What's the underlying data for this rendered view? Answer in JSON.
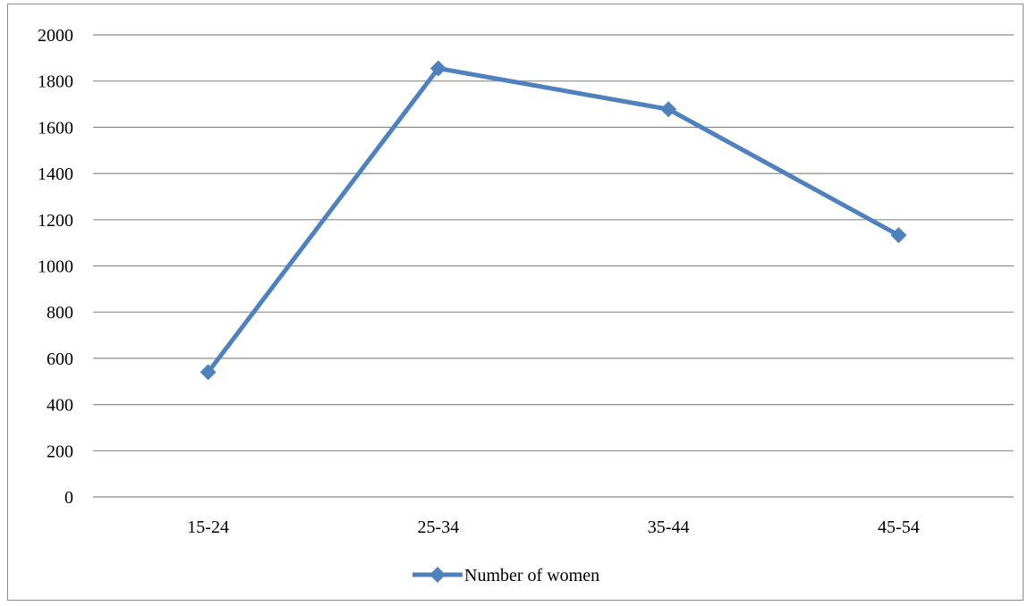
{
  "chart_data": {
    "type": "line",
    "categories": [
      "15-24",
      "25-34",
      "35-44",
      "45-54"
    ],
    "series": [
      {
        "name": "Number of women",
        "values": [
          540,
          1855,
          1678,
          1133
        ],
        "color": "#4F81BD",
        "marker": "diamond"
      }
    ],
    "ylim": [
      0,
      2000
    ],
    "yticks": [
      0,
      200,
      400,
      600,
      800,
      1000,
      1200,
      1400,
      1600,
      1800,
      2000
    ],
    "grid": true,
    "legend_position": "bottom",
    "title": "",
    "xlabel": "",
    "ylabel": ""
  }
}
